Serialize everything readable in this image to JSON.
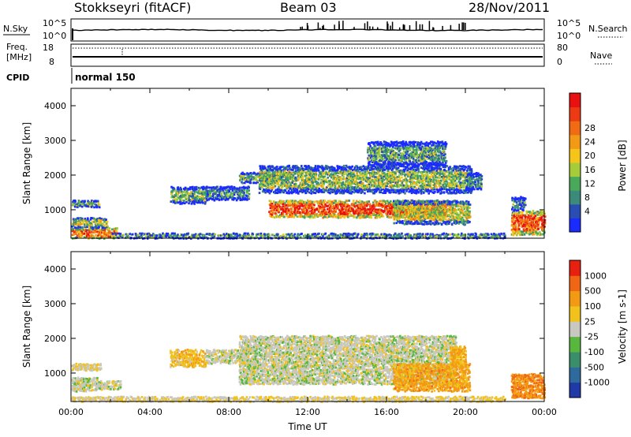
{
  "header": {
    "title": "Stokkseyri (fitACF)",
    "beam": "Beam 03",
    "date": "28/Nov/2011"
  },
  "strips": {
    "noise_label": "N.Sky",
    "noise_right_label": "N.Search",
    "noise_ticks_left": [
      "10^5",
      "10^0"
    ],
    "noise_ticks_right": [
      "10^5",
      "10^0"
    ],
    "freq_label_1": "Freq.",
    "freq_label_2": "[MHz]",
    "freq_ticks_left": [
      "18",
      "8"
    ],
    "nave_label": "Nave",
    "nave_ticks_right": [
      "80",
      "0"
    ],
    "cpid_label": "CPID",
    "cpid_value": "normal 150"
  },
  "panels": {
    "ylabel": "Slant Range [km]",
    "xlabel": "Time UT",
    "y_ticks": [
      "1000",
      "2000",
      "3000",
      "4000"
    ],
    "x_ticks": [
      "00:00",
      "04:00",
      "08:00",
      "12:00",
      "16:00",
      "20:00",
      "00:00"
    ]
  },
  "colorbars": {
    "power": {
      "label": "Power [dB]",
      "ticks": [
        "4",
        "8",
        "12",
        "16",
        "20",
        "24",
        "28"
      ],
      "colors": [
        "#1a2bff",
        "#2a4db3",
        "#3c8a7a",
        "#4aa85a",
        "#a6cc3a",
        "#f5c51a",
        "#f39a14",
        "#f06b14",
        "#ee3a12",
        "#e81010"
      ]
    },
    "velocity": {
      "label": "Velocity [m s-1]",
      "ticks": [
        "1000",
        "500",
        "100",
        "25",
        "-25",
        "-100",
        "-500",
        "-1000"
      ],
      "colors": [
        "#1f3aa6",
        "#2f6a9c",
        "#3a8f6a",
        "#58b83e",
        "#c8c8c0",
        "#f2c21c",
        "#f39a14",
        "#f06614",
        "#e82010"
      ]
    }
  },
  "chart_data": {
    "type": "heatmap",
    "x_range_hours": [
      0,
      24
    ],
    "y_range_km": [
      180,
      4500
    ],
    "power_regions": [
      {
        "t0": 0.0,
        "t1": 1.4,
        "r0": 1100,
        "r1": 1300,
        "level": 0.35
      },
      {
        "t0": 0.0,
        "t1": 2.3,
        "r0": 200,
        "r1": 500,
        "level": 0.75
      },
      {
        "t0": 0.0,
        "t1": 1.8,
        "r0": 500,
        "r1": 800,
        "level": 0.45
      },
      {
        "t0": 5.0,
        "t1": 6.8,
        "r0": 1200,
        "r1": 1700,
        "level": 0.35
      },
      {
        "t0": 6.8,
        "t1": 9.0,
        "r0": 1300,
        "r1": 1700,
        "level": 0.25
      },
      {
        "t0": 8.5,
        "t1": 11.0,
        "r0": 1800,
        "r1": 2100,
        "level": 0.35
      },
      {
        "t0": 9.5,
        "t1": 20.3,
        "r0": 1500,
        "r1": 2300,
        "level": 0.4
      },
      {
        "t0": 10.0,
        "t1": 19.0,
        "r0": 800,
        "r1": 1300,
        "level": 0.85
      },
      {
        "t0": 15.0,
        "t1": 19.0,
        "r0": 2300,
        "r1": 3000,
        "level": 0.3
      },
      {
        "t0": 16.3,
        "t1": 20.2,
        "r0": 600,
        "r1": 1300,
        "level": 0.5
      },
      {
        "t0": 20.0,
        "t1": 20.8,
        "r0": 1600,
        "r1": 2100,
        "level": 0.2
      },
      {
        "t0": 2.0,
        "t1": 22.0,
        "r0": 200,
        "r1": 350,
        "level": 0.3
      },
      {
        "t0": 22.3,
        "t1": 24.0,
        "r0": 300,
        "r1": 1000,
        "level": 0.8
      },
      {
        "t0": 22.3,
        "t1": 23.0,
        "r0": 1000,
        "r1": 1400,
        "level": 0.25
      }
    ],
    "velocity_regions": [
      {
        "t0": 0.0,
        "t1": 1.3,
        "r0": 500,
        "r1": 900,
        "level": 0.5
      },
      {
        "t0": 1.3,
        "t1": 2.5,
        "r0": 550,
        "r1": 800,
        "level": 0.5
      },
      {
        "t0": 0.0,
        "t1": 1.5,
        "r0": 1100,
        "r1": 1300,
        "level": 0.55
      },
      {
        "t0": 0.0,
        "t1": 22.0,
        "r0": 200,
        "r1": 350,
        "level": 0.55
      },
      {
        "t0": 5.0,
        "t1": 6.8,
        "r0": 1200,
        "r1": 1700,
        "level": 0.62
      },
      {
        "t0": 6.8,
        "t1": 9.0,
        "r0": 1300,
        "r1": 1700,
        "level": 0.5
      },
      {
        "t0": 8.5,
        "t1": 19.5,
        "r0": 700,
        "r1": 2100,
        "level": 0.5
      },
      {
        "t0": 16.3,
        "t1": 20.2,
        "r0": 500,
        "r1": 1300,
        "level": 0.7
      },
      {
        "t0": 19.2,
        "t1": 20.0,
        "r0": 1200,
        "r1": 1800,
        "level": 0.68
      },
      {
        "t0": 22.3,
        "t1": 24.0,
        "r0": 300,
        "r1": 1000,
        "level": 0.75
      }
    ]
  }
}
